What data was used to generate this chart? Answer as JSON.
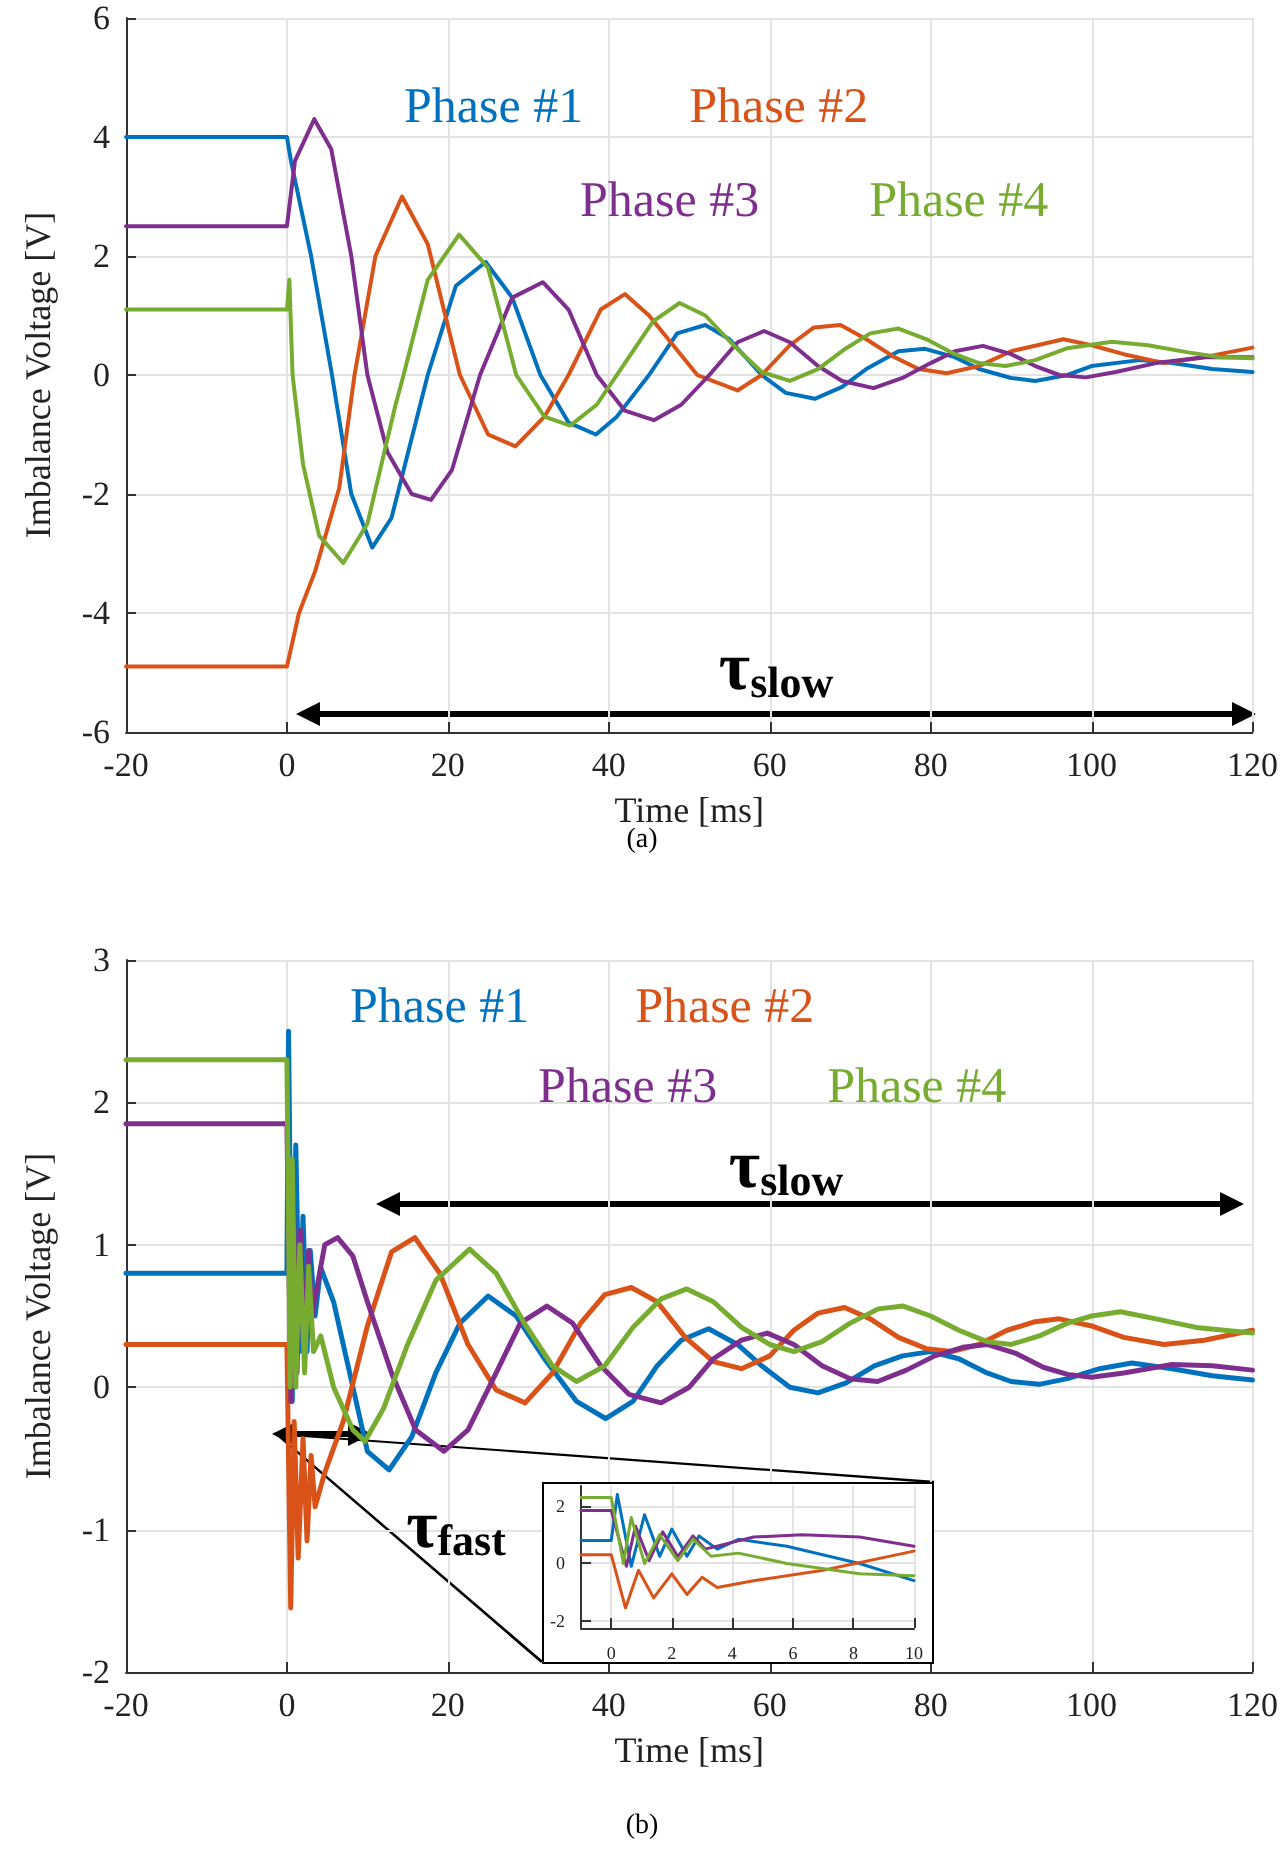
{
  "chart_data": [
    {
      "type": "line",
      "xlabel": "Time [ms]",
      "ylabel": "Imbalance Voltage [V]",
      "xlim": [
        -20,
        120
      ],
      "xticks": [
        -20,
        0,
        20,
        40,
        60,
        80,
        100,
        120
      ],
      "ylim": [
        -6,
        6
      ],
      "yticks": [
        -6,
        -4,
        -2,
        0,
        2,
        4,
        6
      ],
      "grid": true,
      "legend": "top",
      "annotations": [
        "τ$_{slow}$",
        "(a)"
      ],
      "series": [
        {
          "name": "Phase #1",
          "color": "#0072bd",
          "x": [
            -20,
            0,
            0.5,
            3,
            5.6,
            8,
            10.6,
            13,
            17.5,
            21,
            24.7,
            28,
            31.5,
            35,
            38.4,
            41,
            45,
            48.5,
            52,
            55,
            59,
            62,
            65.6,
            69,
            72,
            76,
            79.3,
            83,
            86,
            90,
            93,
            97,
            100,
            106,
            110,
            115,
            120
          ],
          "values": [
            4,
            4,
            3.6,
            2,
            0,
            -2,
            -2.9,
            -2.4,
            0,
            1.5,
            1.9,
            1.3,
            0,
            -0.8,
            -1,
            -0.7,
            0,
            0.7,
            0.84,
            0.6,
            0,
            -0.3,
            -0.4,
            -0.2,
            0.1,
            0.4,
            0.44,
            0.3,
            0.1,
            -0.05,
            -0.1,
            0,
            0.15,
            0.25,
            0.2,
            0.1,
            0.05
          ]
        },
        {
          "name": "Phase #2",
          "color": "#d95319",
          "x": [
            -20,
            0,
            0.5,
            1.5,
            3.5,
            6.5,
            8.4,
            11,
            14.3,
            17.5,
            21.5,
            25,
            28.4,
            32,
            35,
            39,
            42,
            45,
            48,
            51,
            56,
            59,
            62.5,
            65.5,
            68.8,
            72,
            75.5,
            78.5,
            82,
            86,
            90,
            96.5,
            100,
            104,
            109,
            114,
            120
          ],
          "values": [
            -4.9,
            -4.9,
            -4.6,
            -4,
            -3.3,
            -1.9,
            0,
            2,
            3,
            2.2,
            0,
            -1,
            -1.2,
            -0.7,
            0,
            1.1,
            1.36,
            1,
            0.5,
            0,
            -0.26,
            0,
            0.5,
            0.8,
            0.84,
            0.6,
            0.3,
            0.1,
            0.03,
            0.15,
            0.4,
            0.6,
            0.5,
            0.35,
            0.2,
            0.3,
            0.46
          ]
        },
        {
          "name": "Phase #3",
          "color": "#7e2f8e",
          "x": [
            -20,
            0,
            1,
            3.4,
            5.5,
            8,
            10,
            12.5,
            15.5,
            17.9,
            20.5,
            24,
            28,
            31.8,
            35,
            38.5,
            42,
            45.6,
            49,
            52.5,
            56,
            59.3,
            62.5,
            66,
            69,
            72.9,
            76.5,
            80,
            83,
            86.5,
            90,
            93,
            96,
            99.3,
            103,
            108,
            114,
            120
          ],
          "values": [
            2.5,
            2.5,
            3.6,
            4.3,
            3.8,
            2,
            0,
            -1.3,
            -2,
            -2.1,
            -1.6,
            0,
            1.3,
            1.56,
            1.1,
            0,
            -0.6,
            -0.76,
            -0.5,
            0,
            0.55,
            0.74,
            0.55,
            0.15,
            -0.1,
            -0.22,
            -0.05,
            0.2,
            0.4,
            0.49,
            0.35,
            0.15,
            0,
            -0.04,
            0.05,
            0.2,
            0.3,
            0.3
          ]
        },
        {
          "name": "Phase #4",
          "color": "#77ac30",
          "x": [
            -20,
            0,
            0.3,
            0.7,
            2,
            4,
            7,
            10,
            13.5,
            14.5,
            17.5,
            21.4,
            25,
            28.5,
            32,
            35.2,
            38.5,
            42,
            45.5,
            48.8,
            52,
            55.5,
            59,
            62.5,
            66,
            69.5,
            72.5,
            76,
            79.5,
            83,
            86,
            89.3,
            93,
            97,
            102.5,
            107,
            112,
            116,
            120
          ],
          "values": [
            1.1,
            1.1,
            1.6,
            0,
            -1.5,
            -2.7,
            -3.16,
            -2.5,
            -0.5,
            0,
            1.6,
            2.36,
            1.8,
            0,
            -0.7,
            -0.85,
            -0.5,
            0.2,
            0.9,
            1.21,
            1,
            0.5,
            0.05,
            -0.1,
            0.1,
            0.45,
            0.7,
            0.78,
            0.6,
            0.35,
            0.2,
            0.15,
            0.25,
            0.45,
            0.56,
            0.5,
            0.38,
            0.3,
            0.28
          ]
        }
      ]
    },
    {
      "type": "line",
      "xlabel": "Time [ms]",
      "ylabel": "Imbalance Voltage [V]",
      "xlim": [
        -20,
        120
      ],
      "xticks": [
        -20,
        0,
        20,
        40,
        60,
        80,
        100,
        120
      ],
      "ylim": [
        -2,
        3
      ],
      "yticks": [
        -2,
        -1,
        0,
        1,
        2,
        3
      ],
      "grid": true,
      "legend": "top",
      "annotations": [
        "τ$_{slow}$",
        "τ$_{fast}$",
        "(b)"
      ],
      "series": [
        {
          "name": "Phase #1",
          "color": "#0072bd",
          "x": [
            -20,
            0,
            0.2,
            0.66,
            1.1,
            1.6,
            2,
            2.5,
            2.9,
            3.5,
            4.2,
            5.8,
            8.2,
            10,
            12.7,
            15.5,
            18.5,
            21.5,
            25,
            28.5,
            32,
            36,
            39.6,
            43,
            46,
            49,
            52.4,
            56,
            59,
            62.5,
            66,
            69.5,
            73,
            76.5,
            80,
            83.5,
            87,
            90,
            93.5,
            97,
            101,
            105,
            110,
            115,
            120
          ],
          "values": [
            0.8,
            0.8,
            2.5,
            -0.1,
            1.7,
            0.25,
            1.2,
            0.25,
            0.96,
            0.5,
            0.84,
            0.6,
            0,
            -0.45,
            -0.58,
            -0.35,
            0.1,
            0.45,
            0.64,
            0.5,
            0.2,
            -0.1,
            -0.22,
            -0.1,
            0.15,
            0.33,
            0.41,
            0.3,
            0.15,
            0,
            -0.04,
            0.03,
            0.15,
            0.22,
            0.25,
            0.2,
            0.1,
            0.04,
            0.02,
            0.06,
            0.13,
            0.17,
            0.13,
            0.08,
            0.05
          ]
        },
        {
          "name": "Phase #2",
          "color": "#d95319",
          "x": [
            -20,
            0,
            0.47,
            0.9,
            1.4,
            2,
            2.5,
            3,
            3.5,
            4.7,
            7,
            10,
            13,
            15.9,
            19,
            22.5,
            26,
            29.6,
            33,
            36.5,
            39.5,
            42.8,
            46,
            49.5,
            53,
            56.5,
            60,
            63,
            66,
            69.3,
            72.5,
            76,
            79.5,
            82.6,
            86,
            89.5,
            93,
            96,
            100,
            104,
            109,
            114,
            120
          ],
          "values": [
            0.3,
            0.3,
            -1.55,
            -0.24,
            -1.2,
            -0.36,
            -1.08,
            -0.48,
            -0.84,
            -0.6,
            -0.24,
            0.43,
            0.95,
            1.05,
            0.8,
            0.3,
            -0.02,
            -0.11,
            0.1,
            0.45,
            0.65,
            0.7,
            0.6,
            0.35,
            0.18,
            0.13,
            0.22,
            0.4,
            0.52,
            0.56,
            0.48,
            0.35,
            0.27,
            0.25,
            0.3,
            0.4,
            0.46,
            0.48,
            0.43,
            0.35,
            0.3,
            0.33,
            0.4
          ]
        },
        {
          "name": "Phase #3",
          "color": "#7e2f8e",
          "x": [
            -20,
            0,
            0.5,
            0.8,
            1.25,
            1.7,
            2.2,
            2.7,
            3.1,
            4.7,
            6.3,
            8.2,
            10,
            13,
            16,
            19.5,
            22.5,
            26,
            29,
            32.3,
            35.5,
            39,
            42.5,
            46.5,
            50,
            53,
            56.5,
            59.7,
            63,
            66.5,
            70,
            73.4,
            77,
            80.5,
            84,
            87,
            90.5,
            94,
            97,
            100,
            104,
            110,
            115,
            120
          ],
          "values": [
            1.85,
            1.85,
            -0.1,
            1.3,
            0.1,
            1.1,
            0.24,
            0.96,
            0.5,
            1,
            1.05,
            0.92,
            0.6,
            0.1,
            -0.3,
            -0.45,
            -0.3,
            0.1,
            0.45,
            0.57,
            0.45,
            0.15,
            -0.05,
            -0.11,
            0,
            0.2,
            0.33,
            0.38,
            0.3,
            0.15,
            0.06,
            0.04,
            0.12,
            0.22,
            0.28,
            0.3,
            0.24,
            0.14,
            0.09,
            0.07,
            0.1,
            0.16,
            0.15,
            0.12
          ]
        },
        {
          "name": "Phase #4",
          "color": "#77ac30",
          "x": [
            -20,
            0,
            0.4,
            0.66,
            1.1,
            1.6,
            2.2,
            2.7,
            3.3,
            4.2,
            5.8,
            8.2,
            9.7,
            12,
            15,
            18.5,
            22.7,
            26,
            29.5,
            33,
            36,
            39.5,
            43,
            46.5,
            49.7,
            53,
            56.5,
            60,
            63,
            66.5,
            70,
            73.5,
            76.6,
            80,
            83.5,
            87,
            90,
            93.5,
            97,
            100,
            103.6,
            108,
            113,
            120
          ],
          "values": [
            2.3,
            2.3,
            0,
            1.6,
            0,
            1,
            0.1,
            0.85,
            0.25,
            0.36,
            0,
            -0.3,
            -0.38,
            -0.15,
            0.3,
            0.75,
            0.97,
            0.8,
            0.45,
            0.15,
            0.04,
            0.15,
            0.42,
            0.62,
            0.69,
            0.6,
            0.42,
            0.3,
            0.25,
            0.32,
            0.45,
            0.55,
            0.57,
            0.5,
            0.4,
            0.32,
            0.3,
            0.36,
            0.45,
            0.5,
            0.53,
            0.48,
            0.42,
            0.38
          ]
        }
      ]
    },
    {
      "type": "line",
      "xlim": [
        -1,
        10
      ],
      "xticks": [
        0,
        2,
        4,
        6,
        8,
        10
      ],
      "ylim": [
        -2.25,
        2.7
      ],
      "yticks": [
        -2,
        0,
        2
      ],
      "grid": true,
      "series": [
        {
          "color": "#0072bd",
          "x": [
            -1,
            0,
            0.2,
            0.66,
            1.1,
            1.6,
            2,
            2.5,
            2.9,
            3.5,
            4.2,
            5.8,
            8.2,
            10
          ],
          "values": [
            0.8,
            0.8,
            2.4,
            -0.1,
            1.7,
            0.25,
            1.2,
            0.25,
            0.96,
            0.5,
            0.84,
            0.6,
            0,
            -0.6
          ]
        },
        {
          "color": "#d95319",
          "x": [
            -1,
            0,
            0.47,
            0.9,
            1.4,
            2,
            2.5,
            3,
            3.5,
            4.7,
            7,
            10
          ],
          "values": [
            0.3,
            0.3,
            -1.55,
            -0.24,
            -1.2,
            -0.36,
            -1.08,
            -0.48,
            -0.84,
            -0.6,
            -0.24,
            0.43
          ]
        },
        {
          "color": "#7e2f8e",
          "x": [
            -1,
            0,
            0.5,
            0.8,
            1.25,
            1.7,
            2.2,
            2.7,
            3.1,
            4.7,
            6.3,
            8.2,
            10
          ],
          "values": [
            1.85,
            1.85,
            -0.1,
            1.3,
            0.1,
            1.1,
            0.24,
            0.96,
            0.5,
            0.92,
            1,
            0.92,
            0.6
          ]
        },
        {
          "color": "#77ac30",
          "x": [
            -1,
            0,
            0.4,
            0.66,
            1.1,
            1.6,
            2.2,
            2.7,
            3.3,
            4.2,
            5.8,
            8.2,
            10
          ],
          "values": [
            2.3,
            2.3,
            0,
            1.6,
            0,
            1,
            0.1,
            0.85,
            0.25,
            0.36,
            0,
            -0.36,
            -0.43
          ]
        }
      ]
    }
  ]
}
